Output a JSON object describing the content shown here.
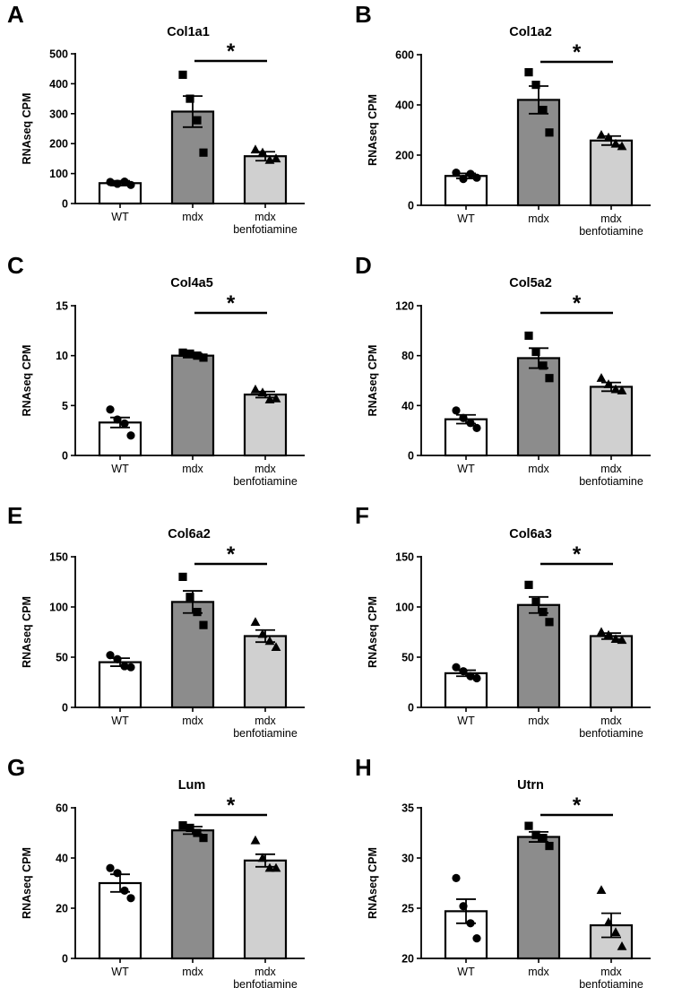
{
  "figure": {
    "colors": {
      "bar_fill": [
        "#ffffff",
        "#8c8c8c",
        "#d0d0d0"
      ],
      "stroke": "#000000"
    },
    "marker_shapes": [
      "circle",
      "square",
      "triangle"
    ]
  },
  "chart_data": [
    {
      "panel": "A",
      "type": "bar",
      "title": "Col1a1",
      "ylabel": "RNAseq CPM",
      "categories": [
        [
          "WT"
        ],
        [
          "mdx"
        ],
        [
          "mdx",
          "benfotiamine"
        ]
      ],
      "ylim": [
        0,
        500
      ],
      "yticks": [
        0,
        100,
        200,
        300,
        400,
        500
      ],
      "means": [
        68,
        307,
        158
      ],
      "sem": [
        8,
        52,
        15
      ],
      "points": [
        [
          72,
          66,
          73,
          62
        ],
        [
          430,
          350,
          278,
          170
        ],
        [
          180,
          170,
          145,
          150
        ]
      ],
      "significance": {
        "label": "*",
        "between": [
          1,
          2
        ]
      }
    },
    {
      "panel": "B",
      "type": "bar",
      "title": "Col1a2",
      "ylabel": "RNAseq CPM",
      "categories": [
        [
          "WT"
        ],
        [
          "mdx"
        ],
        [
          "mdx",
          "benfotiamine"
        ]
      ],
      "ylim": [
        0,
        600
      ],
      "yticks": [
        0,
        200,
        400,
        600
      ],
      "means": [
        117,
        420,
        258
      ],
      "sem": [
        10,
        55,
        18
      ],
      "points": [
        [
          130,
          105,
          125,
          110
        ],
        [
          530,
          480,
          380,
          290
        ],
        [
          280,
          270,
          245,
          235
        ]
      ],
      "significance": {
        "label": "*",
        "between": [
          1,
          2
        ]
      }
    },
    {
      "panel": "C",
      "type": "bar",
      "title": "Col4a5",
      "ylabel": "RNAseq CPM",
      "categories": [
        [
          "WT"
        ],
        [
          "mdx"
        ],
        [
          "mdx",
          "benfotiamine"
        ]
      ],
      "ylim": [
        0,
        15
      ],
      "yticks": [
        0,
        5,
        10,
        15
      ],
      "means": [
        3.3,
        10.0,
        6.1
      ],
      "sem": [
        0.5,
        0.2,
        0.3
      ],
      "points": [
        [
          4.6,
          3.6,
          3.2,
          2.0
        ],
        [
          10.3,
          10.2,
          10.0,
          9.8
        ],
        [
          6.6,
          6.3,
          5.6,
          5.7
        ]
      ],
      "significance": {
        "label": "*",
        "between": [
          1,
          2
        ]
      }
    },
    {
      "panel": "D",
      "type": "bar",
      "title": "Col5a2",
      "ylabel": "RNAseq CPM",
      "categories": [
        [
          "WT"
        ],
        [
          "mdx"
        ],
        [
          "mdx",
          "benfotiamine"
        ]
      ],
      "ylim": [
        0,
        120
      ],
      "yticks": [
        0,
        40,
        80,
        120
      ],
      "means": [
        29,
        78,
        55
      ],
      "sem": [
        3.5,
        8,
        3.5
      ],
      "points": [
        [
          36,
          30,
          26,
          22
        ],
        [
          96,
          83,
          72,
          62
        ],
        [
          62,
          57,
          53,
          52
        ]
      ],
      "significance": {
        "label": "*",
        "between": [
          1,
          2
        ]
      }
    },
    {
      "panel": "E",
      "type": "bar",
      "title": "Col6a2",
      "ylabel": "RNAseq CPM",
      "categories": [
        [
          "WT"
        ],
        [
          "mdx"
        ],
        [
          "mdx",
          "benfotiamine"
        ]
      ],
      "ylim": [
        0,
        150
      ],
      "yticks": [
        0,
        50,
        100,
        150
      ],
      "means": [
        45,
        105,
        71
      ],
      "sem": [
        4,
        11,
        6
      ],
      "points": [
        [
          52,
          48,
          41,
          40
        ],
        [
          130,
          110,
          95,
          82
        ],
        [
          85,
          73,
          66,
          60
        ]
      ],
      "significance": {
        "label": "*",
        "between": [
          1,
          2
        ]
      }
    },
    {
      "panel": "F",
      "type": "bar",
      "title": "Col6a3",
      "ylabel": "RNAseq CPM",
      "categories": [
        [
          "WT"
        ],
        [
          "mdx"
        ],
        [
          "mdx",
          "benfotiamine"
        ]
      ],
      "ylim": [
        0,
        150
      ],
      "yticks": [
        0,
        50,
        100,
        150
      ],
      "means": [
        34,
        102,
        71
      ],
      "sem": [
        3,
        8,
        3
      ],
      "points": [
        [
          40,
          36,
          31,
          29
        ],
        [
          122,
          105,
          95,
          85
        ],
        [
          75,
          72,
          68,
          67
        ]
      ],
      "significance": {
        "label": "*",
        "between": [
          1,
          2
        ]
      }
    },
    {
      "panel": "G",
      "type": "bar",
      "title": "Lum",
      "ylabel": "RNAseq CPM",
      "categories": [
        [
          "WT"
        ],
        [
          "mdx"
        ],
        [
          "mdx",
          "benfotiamine"
        ]
      ],
      "ylim": [
        0,
        60
      ],
      "yticks": [
        0,
        20,
        40,
        60
      ],
      "means": [
        30,
        51,
        39
      ],
      "sem": [
        3.5,
        1.5,
        2.5
      ],
      "points": [
        [
          36,
          34,
          27,
          24
        ],
        [
          53,
          52,
          50,
          48
        ],
        [
          47,
          40,
          36,
          36
        ]
      ],
      "significance": {
        "label": "*",
        "between": [
          1,
          2
        ]
      }
    },
    {
      "panel": "H",
      "type": "bar",
      "title": "Utrn",
      "ylabel": "RNAseq CPM",
      "categories": [
        [
          "WT"
        ],
        [
          "mdx"
        ],
        [
          "mdx",
          "benfotiamine"
        ]
      ],
      "ylim": [
        20,
        35
      ],
      "yticks": [
        20,
        25,
        30,
        35
      ],
      "means": [
        24.7,
        32.1,
        23.3
      ],
      "sem": [
        1.2,
        0.5,
        1.2
      ],
      "points": [
        [
          28.0,
          25.2,
          23.5,
          22.0
        ],
        [
          33.2,
          32.3,
          32.0,
          31.2
        ],
        [
          26.8,
          23.6,
          22.6,
          21.2
        ]
      ],
      "significance": {
        "label": "*",
        "between": [
          1,
          2
        ]
      }
    }
  ]
}
